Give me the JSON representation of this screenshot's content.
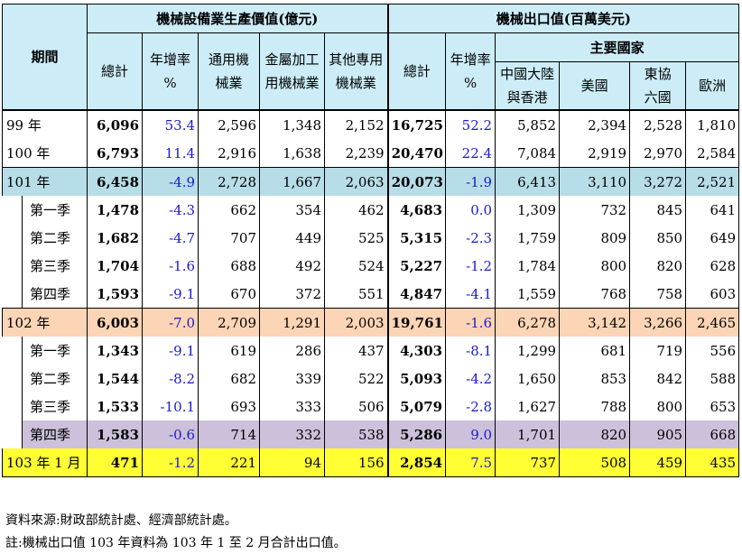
{
  "header": {
    "period": "期間",
    "production_group": "機械設備業生產價值(億元)",
    "export_group": "機械出口值(百萬美元)",
    "main_countries": "主要國家",
    "total": "總計",
    "growth_line1": "年增率",
    "growth_line2": "%",
    "general_line1": "通用機",
    "general_line2": "械業",
    "metal_line1": "金屬加工",
    "metal_line2": "用機械業",
    "other_line1": "其他專用",
    "other_line2": "機械業",
    "exp_total": "總計",
    "exp_growth_line1": "年增率",
    "exp_growth_line2": "%",
    "china_line1": "中國大陸",
    "china_line2": "與香港",
    "usa": "美國",
    "asean_line1": "東協",
    "asean_line2": "六國",
    "europe": "歐洲"
  },
  "rows": [
    {
      "period": "99 年",
      "p_total": "6,096",
      "p_growth": "53.4",
      "general": "2,596",
      "metal": "1,348",
      "other": "2,152",
      "e_total": "16,725",
      "e_growth": "52.2",
      "china": "5,852",
      "usa": "2,394",
      "asean": "2,528",
      "europe": "1,810"
    },
    {
      "period": "100 年",
      "p_total": "6,793",
      "p_growth": "11.4",
      "general": "2,916",
      "metal": "1,638",
      "other": "2,239",
      "e_total": "20,470",
      "e_growth": "22.4",
      "china": "7,084",
      "usa": "2,919",
      "asean": "2,970",
      "europe": "2,584"
    },
    {
      "period": "101 年",
      "p_total": "6,458",
      "p_growth": "-4.9",
      "general": "2,728",
      "metal": "1,667",
      "other": "2,063",
      "e_total": "20,073",
      "e_growth": "-1.9",
      "china": "6,413",
      "usa": "3,110",
      "asean": "3,272",
      "europe": "2,521"
    },
    {
      "period": "第一季",
      "p_total": "1,478",
      "p_growth": "-4.3",
      "general": "662",
      "metal": "354",
      "other": "462",
      "e_total": "4,683",
      "e_growth": "0.0",
      "china": "1,309",
      "usa": "732",
      "asean": "845",
      "europe": "641"
    },
    {
      "period": "第二季",
      "p_total": "1,682",
      "p_growth": "-4.7",
      "general": "707",
      "metal": "449",
      "other": "525",
      "e_total": "5,315",
      "e_growth": "-2.3",
      "china": "1,759",
      "usa": "809",
      "asean": "850",
      "europe": "649"
    },
    {
      "period": "第三季",
      "p_total": "1,704",
      "p_growth": "-1.6",
      "general": "688",
      "metal": "492",
      "other": "524",
      "e_total": "5,227",
      "e_growth": "-1.2",
      "china": "1,784",
      "usa": "800",
      "asean": "820",
      "europe": "628"
    },
    {
      "period": "第四季",
      "p_total": "1,593",
      "p_growth": "-9.1",
      "general": "670",
      "metal": "372",
      "other": "551",
      "e_total": "4,847",
      "e_growth": "-4.1",
      "china": "1,559",
      "usa": "768",
      "asean": "758",
      "europe": "603"
    },
    {
      "period": "102 年",
      "p_total": "6,003",
      "p_growth": "-7.0",
      "general": "2,709",
      "metal": "1,291",
      "other": "2,003",
      "e_total": "19,761",
      "e_growth": "-1.6",
      "china": "6,278",
      "usa": "3,142",
      "asean": "3,266",
      "europe": "2,465"
    },
    {
      "period": "第一季",
      "p_total": "1,343",
      "p_growth": "-9.1",
      "general": "619",
      "metal": "286",
      "other": "437",
      "e_total": "4,303",
      "e_growth": "-8.1",
      "china": "1,299",
      "usa": "681",
      "asean": "719",
      "europe": "556"
    },
    {
      "period": "第二季",
      "p_total": "1,544",
      "p_growth": "-8.2",
      "general": "682",
      "metal": "339",
      "other": "522",
      "e_total": "5,093",
      "e_growth": "-4.2",
      "china": "1,650",
      "usa": "853",
      "asean": "842",
      "europe": "588"
    },
    {
      "period": "第三季",
      "p_total": "1,533",
      "p_growth": "-10.1",
      "general": "693",
      "metal": "333",
      "other": "506",
      "e_total": "5,079",
      "e_growth": "-2.8",
      "china": "1,627",
      "usa": "788",
      "asean": "800",
      "europe": "653"
    },
    {
      "period": "第四季",
      "p_total": "1,583",
      "p_growth": "-0.6",
      "general": "714",
      "metal": "332",
      "other": "538",
      "e_total": "5,286",
      "e_growth": "9.0",
      "china": "1,701",
      "usa": "820",
      "asean": "905",
      "europe": "668"
    },
    {
      "period": "103 年 1 月",
      "p_total": "471",
      "p_growth": "-1.2",
      "general": "221",
      "metal": "94",
      "other": "156",
      "e_total": "2,854",
      "e_growth": "7.5",
      "china": "737",
      "usa": "508",
      "asean": "459",
      "europe": "435"
    }
  ],
  "notes": {
    "source": "資料來源:財政部統計處、經濟部統計處。",
    "note": "註:機械出口值 103 年資料為 103 年 1 至 2 月合計出口值。"
  },
  "colors": {
    "header_bg": "#ccedf8",
    "row_101_bg": "#b7dde8",
    "row_102_bg": "#fbd5b5",
    "row_103_bg": "#ffff33",
    "q4_102_bg": "#ccc0da",
    "growth_text": "#1a1ad0"
  }
}
